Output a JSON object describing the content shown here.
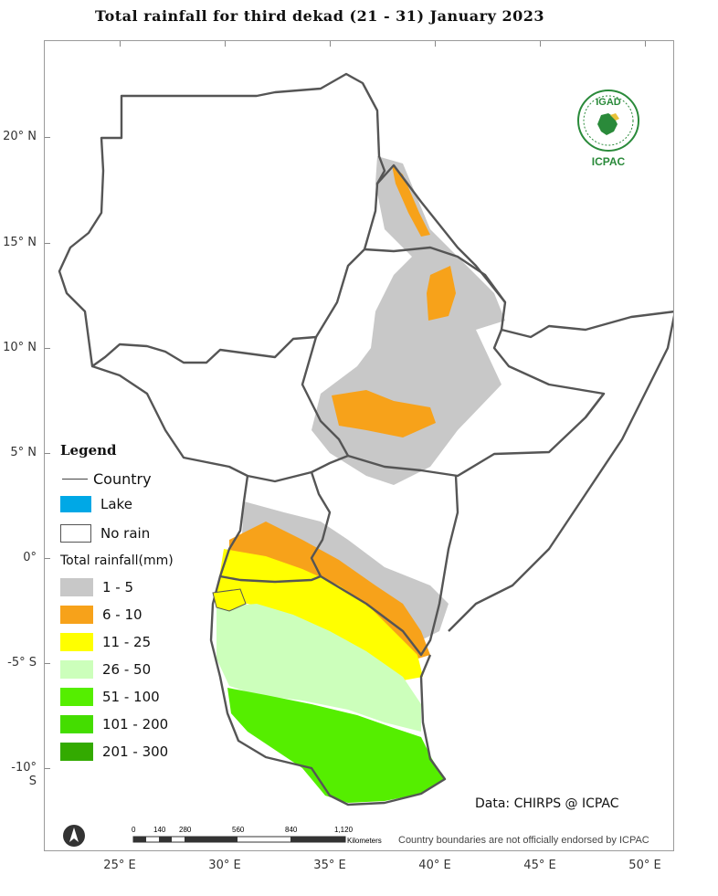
{
  "title": "Total rainfall  for  third  dekad (21 - 31)  January 2023",
  "lat_labels": [
    "20° N",
    "15° N",
    "10° N",
    "5° N",
    "0°",
    "-5° S",
    "-10° S"
  ],
  "lon_labels": [
    "25° E",
    "30° E",
    "35° E",
    "40° E",
    "45° E",
    "50° E"
  ],
  "legend": {
    "title": "Legend",
    "country": "Country",
    "lake": "Lake",
    "no_rain": "No rain",
    "rainfall_title": "Total rainfall(mm)",
    "classes": [
      {
        "label": "1 - 5",
        "color": "#c8c8c8"
      },
      {
        "label": "6 - 10",
        "color": "#f7a21a"
      },
      {
        "label": "11 - 25",
        "color": "#ffff00"
      },
      {
        "label": "26 - 50",
        "color": "#ccffbb"
      },
      {
        "label": "51 - 100",
        "color": "#55ee00"
      },
      {
        "label": "101 - 200",
        "color": "#44dd00"
      },
      {
        "label": "201 - 300",
        "color": "#33aa00"
      }
    ],
    "lake_color": "#00a8e6"
  },
  "logo": {
    "top_text": "IGAD",
    "bottom_text": "ICPAC"
  },
  "scale": {
    "ticks": [
      "0",
      "140",
      "280",
      "560",
      "840",
      "1,120"
    ],
    "unit": "Kilometers"
  },
  "credit": "Data: CHIRPS @ ICPAC",
  "disclaimer": "Country boundaries are not officially endorsed by ICPAC"
}
